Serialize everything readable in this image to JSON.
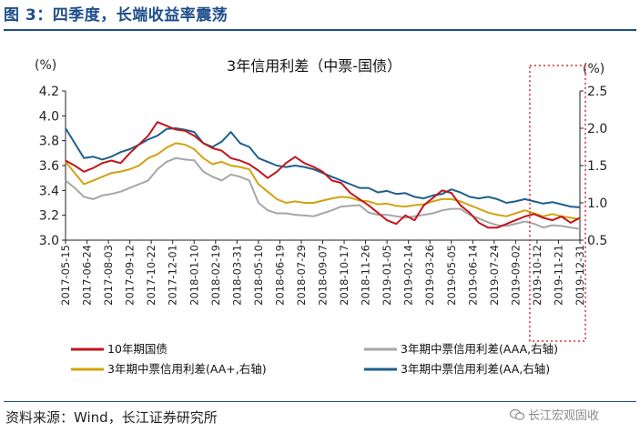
{
  "header": {
    "figure_title": "图 3：四季度，长端收益率震荡"
  },
  "footer": {
    "source": "资料来源：Wind，长江证券研究所",
    "watermark": "长江宏观固收"
  },
  "colors": {
    "header_blue": "#1f4e8c",
    "highlight_box": "#e0262d"
  },
  "chart_data": {
    "type": "line",
    "title": "3年信用利差（中票-国债）",
    "left_unit": "(%)",
    "right_unit": "(%)",
    "left_ylim": [
      3.0,
      4.2
    ],
    "left_ticks": [
      "3.0",
      "3.2",
      "3.4",
      "3.6",
      "3.8",
      "4.0",
      "4.2"
    ],
    "right_ylim": [
      0.5,
      2.5
    ],
    "right_ticks": [
      "0.5",
      "1.0",
      "1.5",
      "2.0",
      "2.5"
    ],
    "x_labels": [
      "2017-05-15",
      "2017-06-24",
      "2017-08-03",
      "2017-09-12",
      "2017-10-22",
      "2017-12-01",
      "2018-01-10",
      "2018-02-19",
      "2018-03-31",
      "2018-05-10",
      "2018-06-19",
      "2018-07-29",
      "2018-09-07",
      "2018-10-17",
      "2018-11-26",
      "2019-01-05",
      "2019-02-14",
      "2019-03-26",
      "2019-05-05",
      "2019-06-14",
      "2019-07-24",
      "2019-09-02",
      "2019-10-12",
      "2019-11-21",
      "2019-12-31"
    ],
    "grid": false,
    "legend_position": "bottom",
    "highlight_region": {
      "from": "2019-10-12",
      "to": "2019-12-31"
    },
    "series": [
      {
        "name": "10年期国债",
        "axis": "left",
        "color": "#c0161c",
        "values": [
          3.64,
          3.6,
          3.55,
          3.58,
          3.62,
          3.64,
          3.62,
          3.7,
          3.77,
          3.84,
          3.95,
          3.92,
          3.89,
          3.88,
          3.84,
          3.78,
          3.74,
          3.72,
          3.66,
          3.64,
          3.61,
          3.56,
          3.5,
          3.55,
          3.62,
          3.67,
          3.62,
          3.59,
          3.55,
          3.48,
          3.46,
          3.38,
          3.33,
          3.28,
          3.22,
          3.16,
          3.13,
          3.2,
          3.16,
          3.28,
          3.34,
          3.4,
          3.38,
          3.28,
          3.22,
          3.14,
          3.1,
          3.1,
          3.13,
          3.16,
          3.19,
          3.21,
          3.18,
          3.16,
          3.19,
          3.14,
          3.18
        ]
      },
      {
        "name": "3年期中票信用利差(AAA,右轴)",
        "axis": "right",
        "color": "#a6a6a6",
        "values": [
          1.3,
          1.2,
          1.08,
          1.05,
          1.1,
          1.12,
          1.15,
          1.2,
          1.25,
          1.3,
          1.45,
          1.55,
          1.6,
          1.58,
          1.57,
          1.42,
          1.35,
          1.3,
          1.38,
          1.35,
          1.3,
          1.0,
          0.9,
          0.86,
          0.86,
          0.84,
          0.83,
          0.82,
          0.86,
          0.9,
          0.95,
          0.96,
          0.97,
          0.87,
          0.84,
          0.84,
          0.82,
          0.8,
          0.82,
          0.84,
          0.86,
          0.9,
          0.92,
          0.92,
          0.84,
          0.79,
          0.74,
          0.7,
          0.69,
          0.72,
          0.75,
          0.72,
          0.67,
          0.7,
          0.69,
          0.67,
          0.65
        ]
      },
      {
        "name": "3年期中票信用利差(AA+,右轴)",
        "axis": "right",
        "color": "#d4a20e",
        "values": [
          1.55,
          1.4,
          1.25,
          1.3,
          1.35,
          1.4,
          1.42,
          1.45,
          1.5,
          1.6,
          1.65,
          1.74,
          1.8,
          1.78,
          1.72,
          1.6,
          1.52,
          1.55,
          1.5,
          1.48,
          1.45,
          1.25,
          1.15,
          1.05,
          1.0,
          1.02,
          1.0,
          1.0,
          1.03,
          1.06,
          1.08,
          1.07,
          1.03,
          1.02,
          0.98,
          0.99,
          0.96,
          0.95,
          0.97,
          0.98,
          1.02,
          1.05,
          1.05,
          1.02,
          0.97,
          0.92,
          0.87,
          0.84,
          0.82,
          0.86,
          0.9,
          0.86,
          0.82,
          0.85,
          0.82,
          0.8,
          0.78
        ]
      },
      {
        "name": "3年期中票信用利差(AA,右轴)",
        "axis": "right",
        "color": "#1f5f8b",
        "values": [
          2.0,
          1.8,
          1.6,
          1.62,
          1.58,
          1.62,
          1.68,
          1.72,
          1.78,
          1.85,
          1.9,
          1.99,
          2.0,
          1.98,
          1.95,
          1.8,
          1.75,
          1.82,
          1.95,
          1.8,
          1.75,
          1.6,
          1.55,
          1.5,
          1.48,
          1.5,
          1.48,
          1.45,
          1.4,
          1.35,
          1.3,
          1.25,
          1.2,
          1.2,
          1.14,
          1.16,
          1.12,
          1.13,
          1.08,
          1.06,
          1.1,
          1.12,
          1.18,
          1.14,
          1.08,
          1.06,
          1.08,
          1.05,
          1.0,
          1.02,
          1.05,
          1.02,
          0.99,
          1.01,
          0.98,
          0.95,
          0.94
        ]
      }
    ]
  }
}
